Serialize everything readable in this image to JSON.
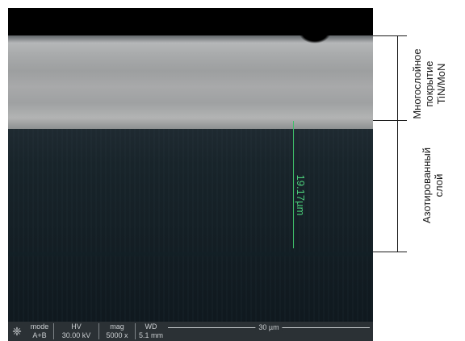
{
  "image": {
    "measurement": "19.17µm"
  },
  "infobar": {
    "mode_key": "mode",
    "mode_val": "A+B",
    "hv_key": "HV",
    "hv_val": "30.00 kV",
    "mag_key": "mag",
    "mag_val": "5000 x",
    "wd_key": "WD",
    "wd_val": "5.1 mm",
    "scale_label": "30 µm",
    "logo_icon": "logo-icon"
  },
  "annotations": {
    "coating_line1": "Многослойное",
    "coating_line2": "покрытие",
    "coating_line3": "TiN/MoN",
    "nitrided_line1": "Азотированный",
    "nitrided_line2": "слой"
  }
}
